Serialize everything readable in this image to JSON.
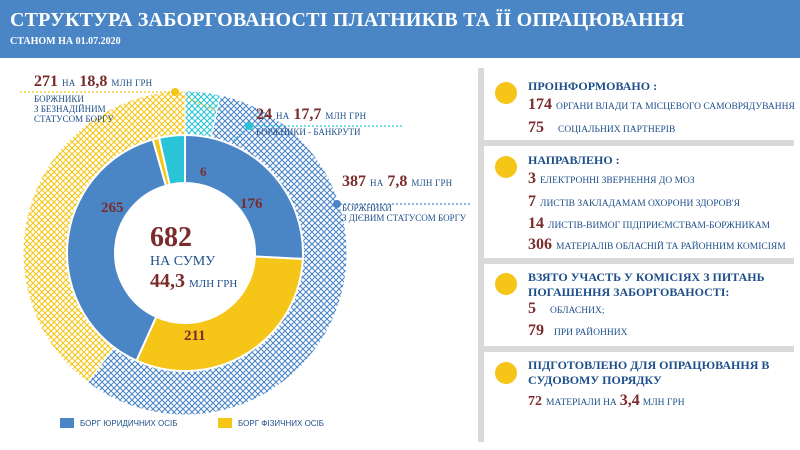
{
  "header": {
    "title": "СТРУКТУРА ЗАБОРГОВАНОСТІ ПЛАТНИКІВ ТА ЇЇ ОПРАЦЮВАННЯ",
    "subtitle": "СТАНОМ НА 01.07.2020"
  },
  "chart_data": {
    "type": "pie",
    "center": {
      "count": "682",
      "label": "НА СУМУ",
      "sum": "44,3",
      "unit": "МЛН ГРН"
    },
    "inner_ring": {
      "categories": [
        "БОРГ ЮРИДИЧНИХ ОСІБ",
        "БОРГ ФІЗИЧНИХ ОСІБ"
      ],
      "slices": [
        {
          "category": "БОРГ ЮРИДИЧНИХ ОСІБ",
          "label": "176",
          "value": 176,
          "color": "#4a86c6"
        },
        {
          "category": "БОРГ ФІЗИЧНИХ ОСІБ",
          "label": "211",
          "value": 211,
          "color": "#f5c518"
        },
        {
          "category": "БОРГ ЮРИДИЧНИХ ОСІБ",
          "label": "265",
          "value": 265,
          "color": "#4a86c6"
        },
        {
          "category": "БОРГ ФІЗИЧНИХ ОСІБ",
          "label": "6",
          "value": 6,
          "color": "#f5c518"
        },
        {
          "category": "БОРГ ЮРИДИЧНИХ ОСІБ",
          "label": "",
          "value": 24,
          "color": "#29c5d6"
        }
      ]
    },
    "outer_ring": [
      {
        "count": "387",
        "on": "НА",
        "amount": "7,8",
        "unit": "МЛН ГРН",
        "caption": [
          "БОРЖНИКИ",
          "З ДІЄВИМ СТАТУСОМ БОРГУ"
        ],
        "value": 387,
        "color": "#4a86c6"
      },
      {
        "count": "271",
        "on": "НА",
        "amount": "18,8",
        "unit": "МЛН ГРН",
        "caption": [
          "БОРЖНИКИ",
          "З БЕЗНАДІЙНИМ",
          "СТАТУСОМ БОРГУ"
        ],
        "value": 271,
        "color": "#f5c518"
      },
      {
        "count": "24",
        "on": "НА",
        "amount": "17,7",
        "unit": "МЛН ГРН",
        "caption": [
          "БОРЖНИКИ - БАНКРУТИ"
        ],
        "value": 24,
        "color": "#29c5d6"
      }
    ],
    "legend": [
      {
        "label": "БОРГ ЮРИДИЧНИХ ОСІБ",
        "color": "#4a86c6"
      },
      {
        "label": "БОРГ ФІЗИЧНИХ ОСІБ",
        "color": "#f5c518"
      }
    ]
  },
  "panel": {
    "informed": {
      "title": "ПРОІНФОРМОВАНО :",
      "items": [
        {
          "n": "174",
          "text": "ОРГАНИ ВЛАДИ ТА МІСЦЕВОГО САМОВРЯДУВАННЯ"
        },
        {
          "n": "75",
          "text": "СОЦІАЛЬНИХ ПАРТНЕРІВ"
        }
      ]
    },
    "sent": {
      "title": "НАПРАВЛЕНО :",
      "items": [
        {
          "n": "3",
          "text": "ЕЛЕКТРОННІ ЗВЕРНЕННЯ ДО МОЗ"
        },
        {
          "n": "7",
          "text": "ЛИСТІВ ЗАКЛАДАМАМ ОХОРОНИ ЗДОРОВ'Я"
        },
        {
          "n": "14",
          "text": "ЛИСТІВ-ВИМОГ ПІДПРИЄМСТВАМ-БОРЖНИКАМ"
        },
        {
          "n": "306",
          "text": "МАТЕРІАЛІВ ОБЛАСНІЙ ТА РАЙОННИМ КОМІСІЯМ"
        }
      ]
    },
    "commissions": {
      "title": [
        "ВЗЯТО УЧАСТЬ У КОМІСІЯХ З ПИТАНЬ",
        "ПОГАШЕННЯ ЗАБОРГОВАНОСТІ:"
      ],
      "items": [
        {
          "n": "5",
          "text": "ОБЛАСНИХ;"
        },
        {
          "n": "79",
          "text": "ПРИ РАЙОННИХ"
        }
      ]
    },
    "court": {
      "title": [
        "ПІДГОТОВЛЕНО ДЛЯ ОПРАЦЮВАННЯ В",
        "СУДОВОМУ ПОРЯДКУ"
      ],
      "item": {
        "n": "72",
        "text": "МАТЕРІАЛИ НА",
        "amount": "3,4",
        "unit": "МЛН ГРН"
      }
    }
  }
}
